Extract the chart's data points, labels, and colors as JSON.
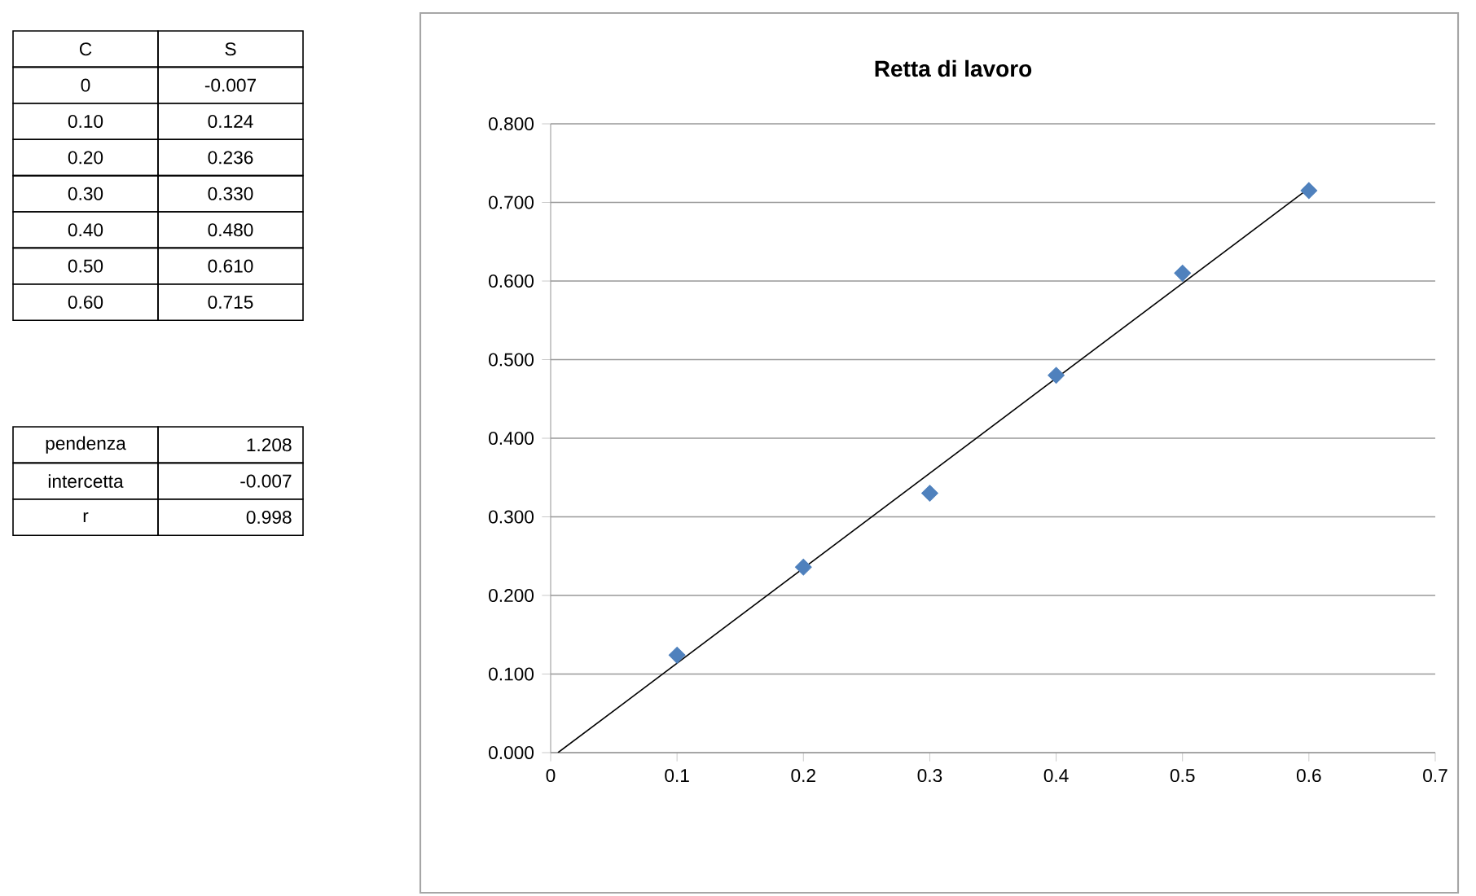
{
  "chart_data": {
    "type": "scatter",
    "title": "Retta di lavoro",
    "xlim": [
      0,
      0.7
    ],
    "xticks": [
      0,
      0.1,
      0.2,
      0.3,
      0.4,
      0.5,
      0.6,
      0.7
    ],
    "ylim": [
      0,
      0.8
    ],
    "yticks": [
      {
        "value": 0,
        "label": "0.000"
      },
      {
        "value": 0.1,
        "label": "0.100"
      },
      {
        "value": 0.2,
        "label": "0.200"
      },
      {
        "value": 0.3,
        "label": "0.300"
      },
      {
        "value": 0.4,
        "label": "0.400"
      },
      {
        "value": 0.5,
        "label": "0.500"
      },
      {
        "value": 0.6,
        "label": "0.600"
      },
      {
        "value": 0.7,
        "label": "0.700"
      },
      {
        "value": 0.8,
        "label": "0.800"
      }
    ],
    "grid": "y",
    "series": [
      {
        "marker": "diamond",
        "color": "#4f81bd",
        "x": [
          0.1,
          0.2,
          0.3,
          0.4,
          0.5,
          0.6
        ],
        "values": [
          0.124,
          0.236,
          0.33,
          0.48,
          0.61,
          0.715
        ]
      },
      {
        "type": "line",
        "marker": "none",
        "line_style": "solid",
        "color": "#000000",
        "x": [
          0.0058,
          0.6
        ],
        "values": [
          0,
          0.718
        ]
      }
    ],
    "annotations": [
      "C",
      "S",
      "0",
      "-0.007",
      "0.10",
      "0.124",
      "0.20",
      "0.236",
      "0.30",
      "0.330",
      "0.40",
      "0.480",
      "0.50",
      "0.610",
      "0.60",
      "0.715",
      "pendenza",
      "1.208",
      "intercetta",
      "-0.007",
      "r",
      "0.998"
    ]
  }
}
